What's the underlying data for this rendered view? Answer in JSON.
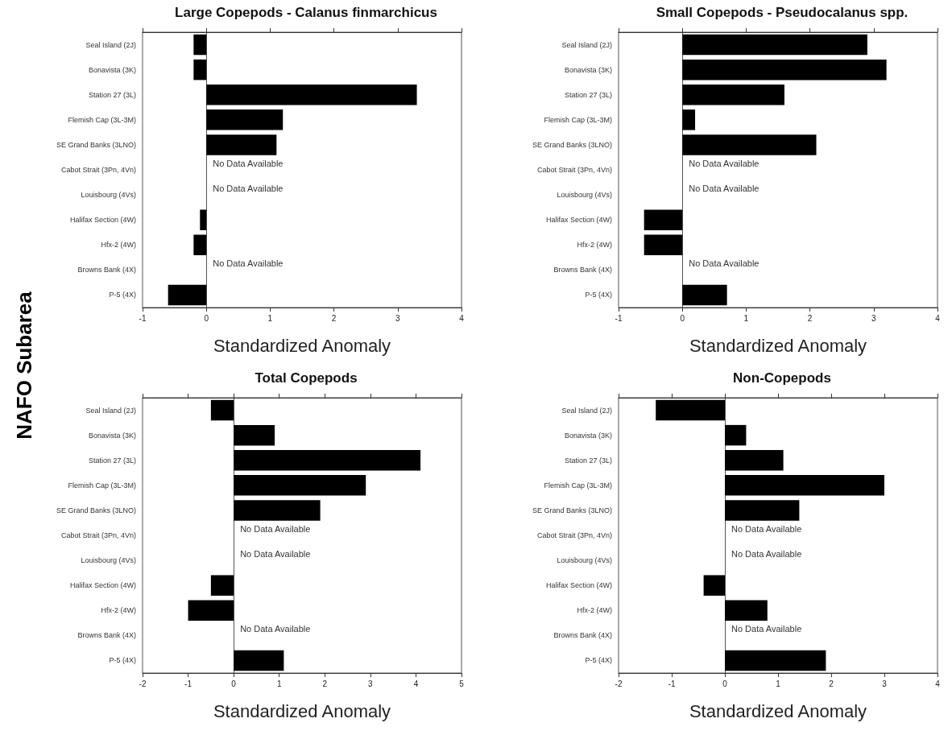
{
  "chart_data": [
    {
      "type": "bar",
      "orientation": "horizontal",
      "title": "Large Copepods - Calanus finmarchicus",
      "xlabel": "Standardized Anomaly",
      "ylabel": "NAFO Subarea",
      "categories": [
        "Seal Island (2J)",
        "Bonavista (3K)",
        "Station 27 (3L)",
        "Flemish Cap (3L-3M)",
        "SE Grand Banks (3LNO)",
        "Cabot Strait (3Pn, 4Vn)",
        "Louisbourg (4Vs)",
        "Halifax Section (4W)",
        "Hfx-2 (4W)",
        "Browns Bank (4X)",
        "P-5 (4X)"
      ],
      "values": [
        -0.2,
        -0.2,
        3.3,
        1.2,
        1.1,
        null,
        null,
        -0.1,
        -0.2,
        null,
        -0.6
      ],
      "color": "#000000",
      "xlim": [
        -1,
        4
      ],
      "xticks": [
        -1,
        0,
        1,
        2,
        3,
        4
      ],
      "annotations": [
        "No Data Available",
        "No Data Available",
        "No Data Available"
      ]
    },
    {
      "type": "bar",
      "orientation": "horizontal",
      "title": "Small Copepods - Pseudocalanus spp.",
      "xlabel": "Standardized Anomaly",
      "categories": [
        "Seal Island (2J)",
        "Bonavista (3K)",
        "Station 27 (3L)",
        "Flemish Cap (3L-3M)",
        "SE Grand Banks (3LNO)",
        "Cabot Strait (3Pn, 4Vn)",
        "Louisbourg (4Vs)",
        "Halifax Section (4W)",
        "Hfx-2 (4W)",
        "Browns Bank (4X)",
        "P-5 (4X)"
      ],
      "values": [
        2.9,
        3.2,
        1.6,
        0.2,
        2.1,
        null,
        null,
        -0.6,
        -0.6,
        null,
        0.7
      ],
      "color": "#000000",
      "xlim": [
        -1,
        4
      ],
      "xticks": [
        -1,
        0,
        1,
        2,
        3,
        4
      ],
      "annotations": [
        "No Data Available",
        "No Data Available",
        "No Data Available"
      ]
    },
    {
      "type": "bar",
      "orientation": "horizontal",
      "title": "Total Copepods",
      "xlabel": "Standardized Anomaly",
      "categories": [
        "Seal Island (2J)",
        "Bonavista (3K)",
        "Station 27 (3L)",
        "Flemish Cap (3L-3M)",
        "SE Grand Banks (3LNO)",
        "Cabot Strait (3Pn, 4Vn)",
        "Louisbourg (4Vs)",
        "Halifax Section (4W)",
        "Hfx-2 (4W)",
        "Browns Bank (4X)",
        "P-5 (4X)"
      ],
      "values": [
        -0.5,
        0.9,
        4.1,
        2.9,
        1.9,
        null,
        null,
        -0.5,
        -1.0,
        null,
        1.1
      ],
      "color": "#000000",
      "xlim": [
        -2,
        5
      ],
      "xticks": [
        -2,
        -1,
        0,
        1,
        2,
        3,
        4,
        5
      ],
      "annotations": [
        "No Data Available",
        "No Data Available",
        "No Data Available"
      ]
    },
    {
      "type": "bar",
      "orientation": "horizontal",
      "title": "Non-Copepods",
      "xlabel": "Standardized Anomaly",
      "categories": [
        "Seal Island (2J)",
        "Bonavista (3K)",
        "Station 27 (3L)",
        "Flemish Cap (3L-3M)",
        "SE Grand Banks (3LNO)",
        "Cabot Strait (3Pn, 4Vn)",
        "Louisbourg (4Vs)",
        "Halifax Section (4W)",
        "Hfx-2 (4W)",
        "Browns Bank (4X)",
        "P-5 (4X)"
      ],
      "values": [
        -1.3,
        0.4,
        1.1,
        3.0,
        1.4,
        null,
        null,
        -0.4,
        0.8,
        null,
        1.9
      ],
      "color": "#000000",
      "xlim": [
        -2,
        4
      ],
      "xticks": [
        -2,
        -1,
        0,
        1,
        2,
        3,
        4
      ],
      "annotations": [
        "No Data Available",
        "No Data Available",
        "No Data Available"
      ]
    }
  ]
}
